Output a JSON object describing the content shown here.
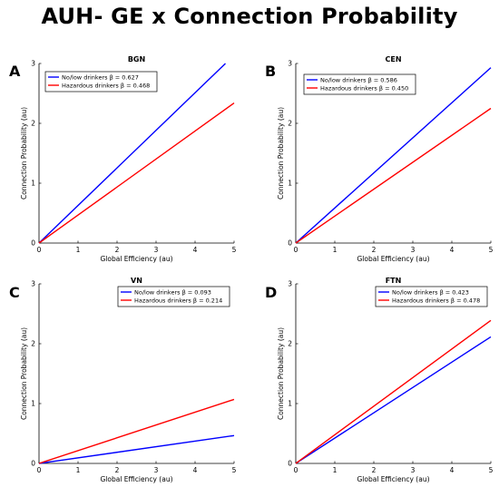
{
  "title": "AUH- GE x Connection Probability",
  "colors": {
    "no_low": "#0000ff",
    "hazardous": "#ff0000"
  },
  "chart_data": [
    {
      "type": "line",
      "letter": "A",
      "title": "BGN",
      "xlabel": "Global Efficiency (au)",
      "ylabel": "Connection Probability (au)",
      "xlim": [
        0,
        5
      ],
      "ylim": [
        0,
        3
      ],
      "xticks": [
        0,
        1,
        2,
        3,
        4,
        5
      ],
      "yticks": [
        0,
        1,
        2,
        3
      ],
      "legend": "top-left",
      "series": [
        {
          "name": "No/low drinkers",
          "beta_label": "β = 0.627",
          "x": [
            0,
            4.78
          ],
          "y": [
            0,
            3.0
          ]
        },
        {
          "name": "Hazardous drinkers",
          "beta_label": "β = 0.468",
          "x": [
            0,
            5
          ],
          "y": [
            0,
            2.34
          ]
        }
      ]
    },
    {
      "type": "line",
      "letter": "B",
      "title": "CEN",
      "xlabel": "Global Efficiency (au)",
      "ylabel": "Connection Probability (au)",
      "xlim": [
        0,
        5
      ],
      "ylim": [
        0,
        3
      ],
      "xticks": [
        0,
        1,
        2,
        3,
        4,
        5
      ],
      "yticks": [
        0,
        1,
        2,
        3
      ],
      "legend": "top-left",
      "series": [
        {
          "name": "No/low drinkers",
          "beta_label": "β = 0.586",
          "x": [
            0,
            5
          ],
          "y": [
            0,
            2.93
          ]
        },
        {
          "name": "Hazardous drinkers",
          "beta_label": "β = 0.450",
          "x": [
            0,
            5
          ],
          "y": [
            0,
            2.25
          ]
        }
      ]
    },
    {
      "type": "line",
      "letter": "C",
      "title": "VN",
      "xlabel": "Global Efficiency (au)",
      "ylabel": "Connection Probability (au)",
      "xlim": [
        0,
        5
      ],
      "ylim": [
        0,
        3
      ],
      "xticks": [
        0,
        1,
        2,
        3,
        4,
        5
      ],
      "yticks": [
        0,
        1,
        2,
        3
      ],
      "legend": "top-right",
      "series": [
        {
          "name": "No/low drinkers",
          "beta_label": "β = 0.093",
          "x": [
            0,
            5
          ],
          "y": [
            0,
            0.465
          ]
        },
        {
          "name": "Hazardous drinkers",
          "beta_label": "β = 0.214",
          "x": [
            0,
            5
          ],
          "y": [
            0,
            1.07
          ]
        }
      ]
    },
    {
      "type": "line",
      "letter": "D",
      "title": "FTN",
      "xlabel": "Global Efficiency (au)",
      "ylabel": "Connection Probability (au)",
      "xlim": [
        0,
        5
      ],
      "ylim": [
        0,
        3
      ],
      "xticks": [
        0,
        1,
        2,
        3,
        4,
        5
      ],
      "yticks": [
        0,
        1,
        2,
        3
      ],
      "legend": "top-right",
      "series": [
        {
          "name": "No/low drinkers",
          "beta_label": "β = 0.423",
          "x": [
            0,
            5
          ],
          "y": [
            0,
            2.115
          ]
        },
        {
          "name": "Hazardous drinkers",
          "beta_label": "β = 0.478",
          "x": [
            0,
            5
          ],
          "y": [
            0,
            2.39
          ]
        }
      ]
    }
  ]
}
